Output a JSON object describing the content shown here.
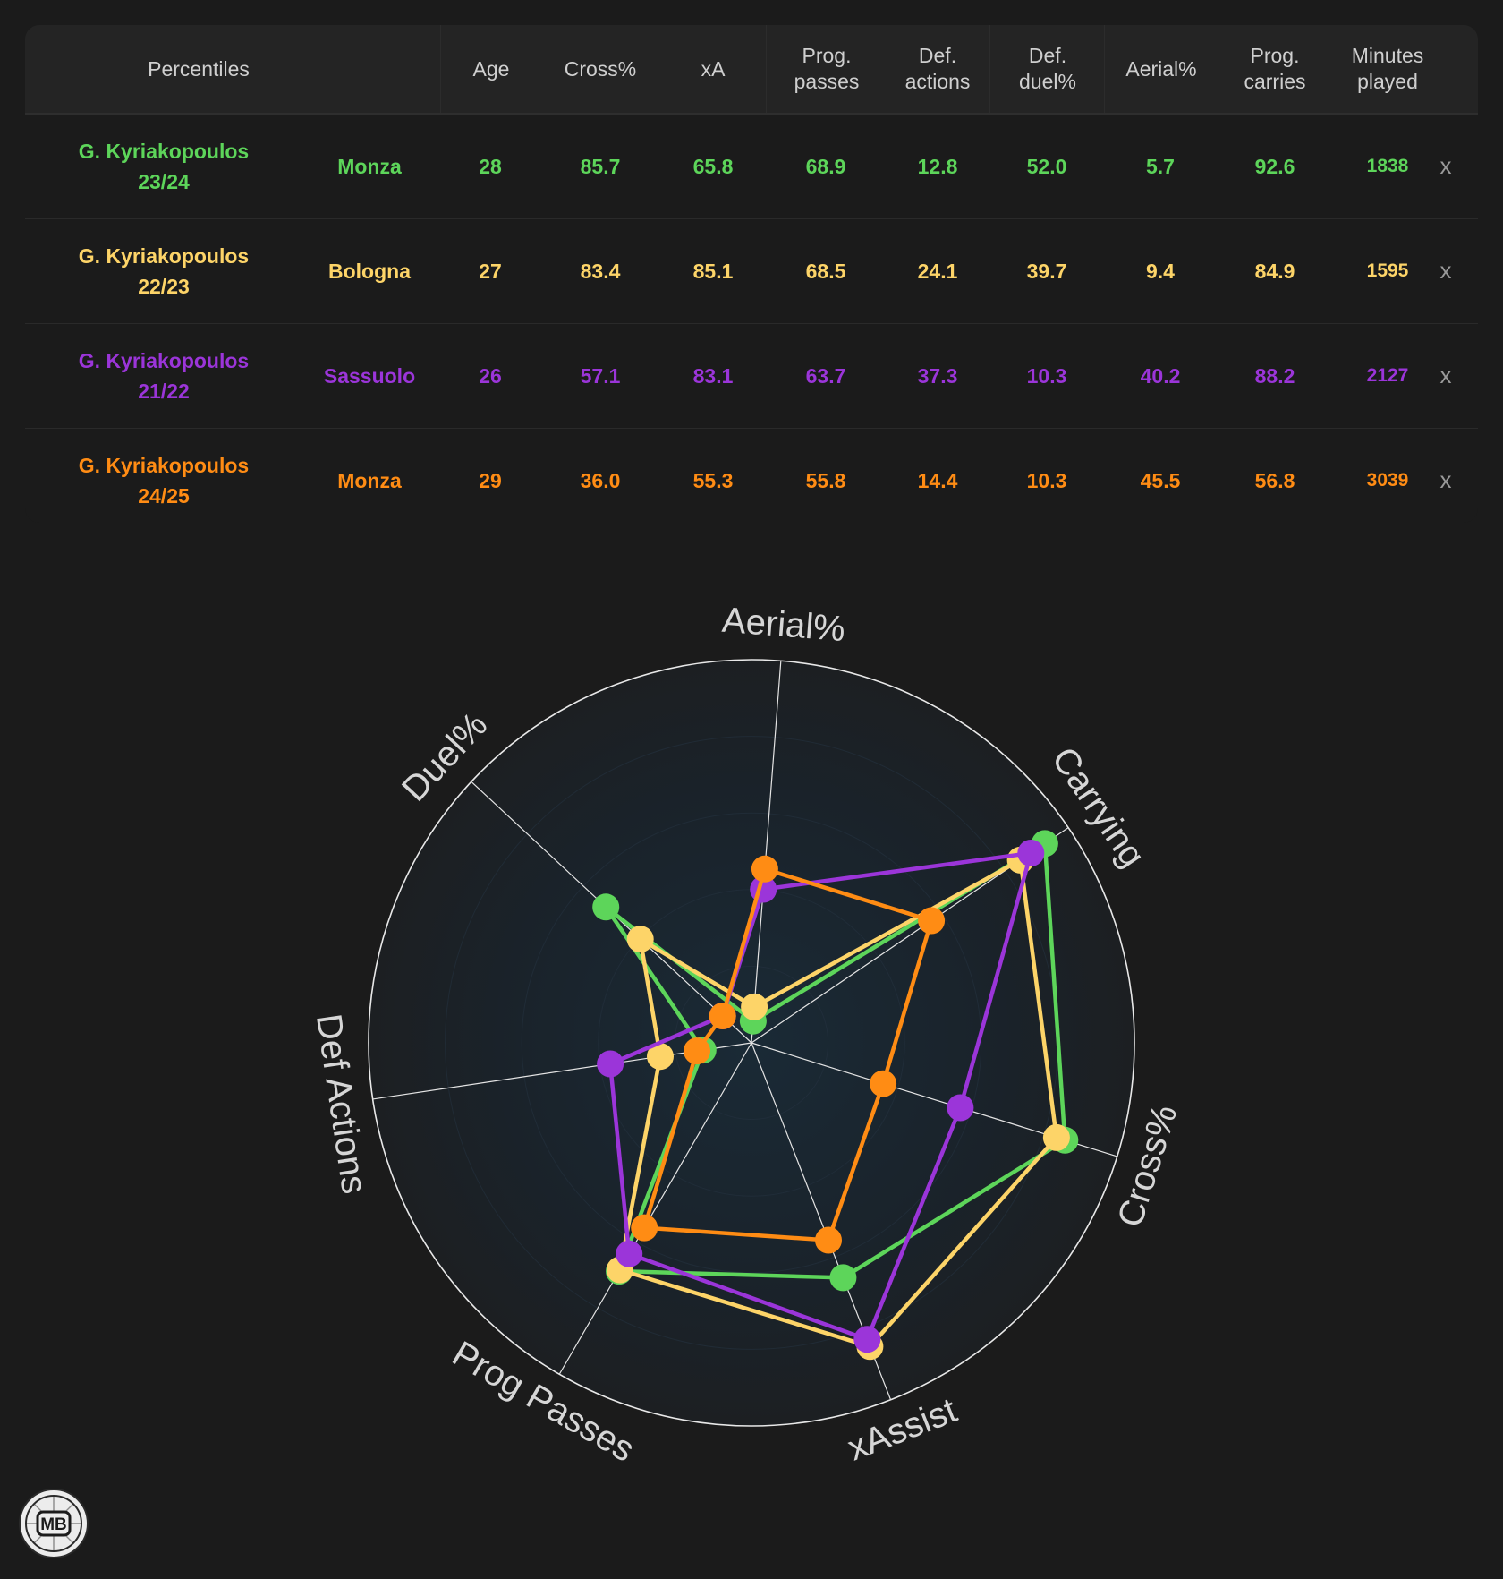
{
  "table": {
    "headers": {
      "percentiles": "Percentiles",
      "age": "Age",
      "cross": "Cross%",
      "xa": "xA",
      "prog_passes": "Prog.\npasses",
      "def_actions": "Def.\nactions",
      "def_duel": "Def.\nduel%",
      "aerial": "Aerial%",
      "prog_carries": "Prog.\ncarries",
      "minutes": "Minutes\nplayed"
    },
    "rows": [
      {
        "player": "G. Kyriakopoulos",
        "season": "23/24",
        "team": "Monza",
        "age": "28",
        "cross": "85.7",
        "xa": "65.8",
        "prog_passes": "68.9",
        "def_actions": "12.8",
        "def_duel": "52.0",
        "aerial": "5.7",
        "prog_carries": "92.6",
        "minutes": "1838",
        "remove": "x",
        "color": "#5dd55a"
      },
      {
        "player": "G. Kyriakopoulos",
        "season": "22/23",
        "team": "Bologna",
        "age": "27",
        "cross": "83.4",
        "xa": "85.1",
        "prog_passes": "68.5",
        "def_actions": "24.1",
        "def_duel": "39.7",
        "aerial": "9.4",
        "prog_carries": "84.9",
        "minutes": "1595",
        "remove": "x",
        "color": "#fdd468"
      },
      {
        "player": "G. Kyriakopoulos",
        "season": "21/22",
        "team": "Sassuolo",
        "age": "26",
        "cross": "57.1",
        "xa": "83.1",
        "prog_passes": "63.7",
        "def_actions": "37.3",
        "def_duel": "10.3",
        "aerial": "40.2",
        "prog_carries": "88.2",
        "minutes": "2127",
        "remove": "x",
        "color": "#9b35d9"
      },
      {
        "player": "G. Kyriakopoulos",
        "season": "24/25",
        "team": "Monza",
        "age": "29",
        "cross": "36.0",
        "xa": "55.3",
        "prog_passes": "55.8",
        "def_actions": "14.4",
        "def_duel": "10.3",
        "aerial": "45.5",
        "prog_carries": "56.8",
        "minutes": "3039",
        "remove": "x",
        "color": "#ff8c14"
      }
    ]
  },
  "chart_data": {
    "type": "radar",
    "axes": [
      "Aerial%",
      "Carrying",
      "Cross%",
      "xAssist",
      "Prog Passes",
      "Def Actions",
      "Duel%"
    ],
    "range": [
      0,
      100
    ],
    "series": [
      {
        "name": "G. Kyriakopoulos 23/24",
        "color": "#5dd55a",
        "values": [
          5.7,
          92.6,
          85.7,
          65.8,
          68.9,
          12.8,
          52.0
        ]
      },
      {
        "name": "G. Kyriakopoulos 22/23",
        "color": "#fdd468",
        "values": [
          9.4,
          84.9,
          83.4,
          85.1,
          68.5,
          24.1,
          39.7
        ]
      },
      {
        "name": "G. Kyriakopoulos 21/22",
        "color": "#9b35d9",
        "values": [
          40.2,
          88.2,
          57.1,
          83.1,
          63.7,
          37.3,
          10.3
        ]
      },
      {
        "name": "G. Kyriakopoulos 24/25",
        "color": "#ff8c14",
        "values": [
          45.5,
          56.8,
          36.0,
          55.3,
          55.8,
          14.4,
          10.3
        ]
      }
    ]
  },
  "logo": {
    "text": "MB"
  }
}
